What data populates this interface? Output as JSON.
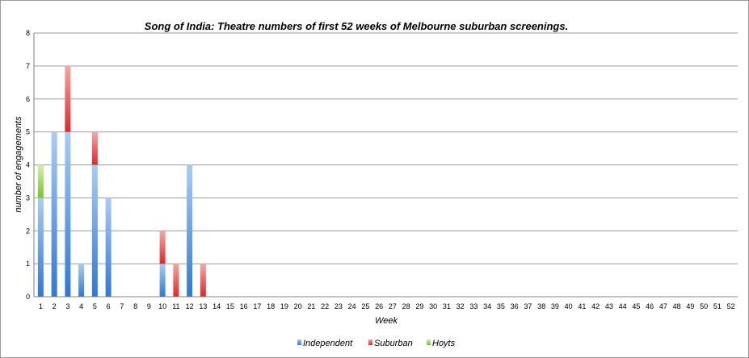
{
  "chart_data": {
    "type": "bar",
    "stacked": true,
    "title": "Song of India: Theatre numbers of first 52 weeks of Melbourne suburban screenings.",
    "xlabel": "Week",
    "ylabel": "number of engagements",
    "ylim": [
      0,
      8
    ],
    "yticks": [
      "0",
      "1",
      "2",
      "3",
      "4",
      "5",
      "6",
      "7",
      "8"
    ],
    "grid": true,
    "legend_position": "bottom",
    "categories": [
      "1",
      "2",
      "3",
      "4",
      "5",
      "6",
      "7",
      "8",
      "9",
      "10",
      "11",
      "12",
      "13",
      "14",
      "15",
      "16",
      "17",
      "18",
      "19",
      "20",
      "21",
      "22",
      "23",
      "24",
      "25",
      "26",
      "27",
      "28",
      "29",
      "30",
      "31",
      "32",
      "33",
      "34",
      "35",
      "36",
      "37",
      "38",
      "39",
      "40",
      "41",
      "42",
      "43",
      "44",
      "45",
      "46",
      "47",
      "48",
      "49",
      "50",
      "51",
      "52"
    ],
    "series": [
      {
        "name": "Independent",
        "color": "#4a8fe0",
        "values": [
          3,
          5,
          5,
          1,
          4,
          3,
          0,
          0,
          0,
          1,
          0,
          4,
          0,
          0,
          0,
          0,
          0,
          0,
          0,
          0,
          0,
          0,
          0,
          0,
          0,
          0,
          0,
          0,
          0,
          0,
          0,
          0,
          0,
          0,
          0,
          0,
          0,
          0,
          0,
          0,
          0,
          0,
          0,
          0,
          0,
          0,
          0,
          0,
          0,
          0,
          0,
          0
        ]
      },
      {
        "name": "Suburban",
        "color": "#e84a4a",
        "values": [
          0,
          0,
          2,
          0,
          1,
          0,
          0,
          0,
          0,
          1,
          1,
          0,
          1,
          0,
          0,
          0,
          0,
          0,
          0,
          0,
          0,
          0,
          0,
          0,
          0,
          0,
          0,
          0,
          0,
          0,
          0,
          0,
          0,
          0,
          0,
          0,
          0,
          0,
          0,
          0,
          0,
          0,
          0,
          0,
          0,
          0,
          0,
          0,
          0,
          0,
          0,
          0
        ]
      },
      {
        "name": "Hoyts",
        "color": "#8ccf3a",
        "values": [
          1,
          0,
          0,
          0,
          0,
          0,
          0,
          0,
          0,
          0,
          0,
          0,
          0,
          0,
          0,
          0,
          0,
          0,
          0,
          0,
          0,
          0,
          0,
          0,
          0,
          0,
          0,
          0,
          0,
          0,
          0,
          0,
          0,
          0,
          0,
          0,
          0,
          0,
          0,
          0,
          0,
          0,
          0,
          0,
          0,
          0,
          0,
          0,
          0,
          0,
          0,
          0
        ]
      }
    ]
  }
}
